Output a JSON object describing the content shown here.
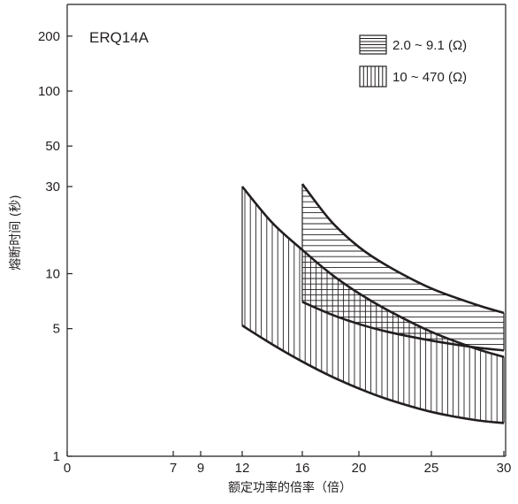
{
  "chart_data": {
    "type": "area",
    "title": "ERQ14A",
    "xlabel": "额定功率的倍率（倍）",
    "ylabel": "熔断时间 (秒)",
    "yscale": "log",
    "xlim": [
      0,
      30
    ],
    "ylim": [
      1,
      300
    ],
    "xticks": [
      {
        "value": 0,
        "label": "0"
      },
      {
        "value": 7,
        "label": "7"
      },
      {
        "value": 9,
        "label": "9"
      },
      {
        "value": 12,
        "label": "12"
      },
      {
        "value": 16,
        "label": "16"
      },
      {
        "value": 20,
        "label": "20"
      },
      {
        "value": 25,
        "label": "25"
      },
      {
        "value": 30,
        "label": "30"
      }
    ],
    "yticks": [
      {
        "value": 1,
        "label": "1"
      },
      {
        "value": 5,
        "label": "5"
      },
      {
        "value": 10,
        "label": "10"
      },
      {
        "value": 30,
        "label": "30"
      },
      {
        "value": 50,
        "label": "50"
      },
      {
        "value": 100,
        "label": "100"
      },
      {
        "value": 200,
        "label": "200"
      }
    ],
    "grid": false,
    "legend_position": "top-right",
    "series": [
      {
        "name": "2.0 ~ 9.1 (Ω)",
        "fill": "horizontal-hatch",
        "upper": {
          "x": [
            16,
            18,
            20,
            22,
            25,
            28,
            30
          ],
          "y": [
            31,
            19.5,
            14,
            11,
            8.3,
            6.8,
            6.1
          ]
        },
        "lower": {
          "x": [
            16,
            18,
            20,
            22,
            25,
            28,
            30
          ],
          "y": [
            7,
            6,
            5.3,
            4.8,
            4.3,
            3.95,
            3.8
          ]
        }
      },
      {
        "name": "10 ~ 470 (Ω)",
        "fill": "vertical-hatch",
        "upper": {
          "x": [
            12,
            14,
            16,
            18,
            20,
            22,
            25,
            28,
            30
          ],
          "y": [
            30,
            19,
            13.5,
            10,
            7.8,
            6.3,
            4.8,
            3.9,
            3.5
          ]
        },
        "lower": {
          "x": [
            12,
            14,
            16,
            18,
            20,
            22,
            25,
            28,
            30
          ],
          "y": [
            5.2,
            4.1,
            3.3,
            2.75,
            2.35,
            2.05,
            1.75,
            1.58,
            1.52
          ]
        }
      }
    ],
    "colors": {
      "line": "#231f20",
      "background": "#ffffff"
    }
  }
}
